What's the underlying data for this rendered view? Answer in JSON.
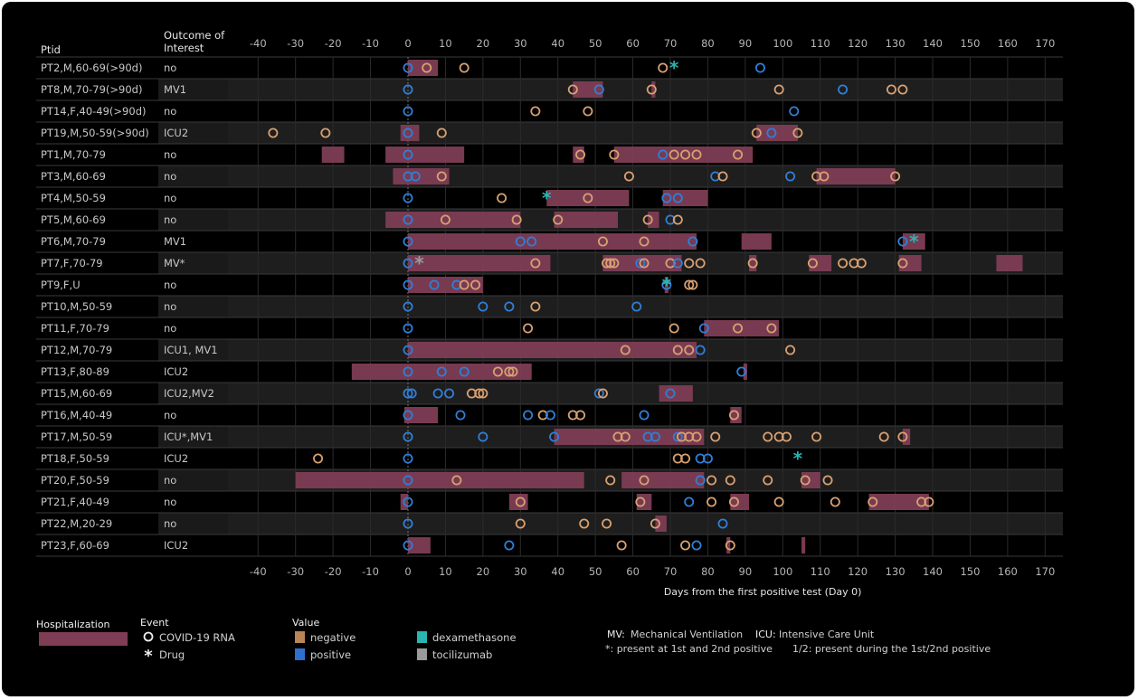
{
  "chart_data": {
    "type": "timeline",
    "xlabel": "Days from the first positive test (Day 0)",
    "xlim": [
      -45,
      175
    ],
    "xticks": [
      -40,
      -30,
      -20,
      -10,
      0,
      10,
      20,
      30,
      40,
      50,
      60,
      70,
      80,
      90,
      100,
      110,
      120,
      130,
      140,
      150,
      160,
      170
    ],
    "columns": {
      "ptid": "Ptid",
      "outcome": "Outcome of Interest"
    },
    "grid": true,
    "colors": {
      "hospitalization": "#7e3d55",
      "negative": "#d9a070",
      "positive": "#2f7fd8",
      "dexamethasone": "#2bb5b0",
      "tocilizumab": "#9a9a9a"
    },
    "rows": [
      {
        "id": "PT2,M,60-69(>90d)",
        "outcome": "no",
        "hosp": [
          [
            0,
            8
          ]
        ],
        "rna": [
          [
            0,
            "pos"
          ],
          [
            5,
            "neg"
          ],
          [
            15,
            "neg"
          ],
          [
            68,
            "neg"
          ],
          [
            94,
            "pos"
          ]
        ],
        "drugs": [
          [
            71,
            "dex"
          ]
        ]
      },
      {
        "id": "PT8,M,70-79(>90d)",
        "outcome": "MV1",
        "hosp": [
          [
            44,
            52
          ],
          [
            65,
            66
          ]
        ],
        "rna": [
          [
            0,
            "pos"
          ],
          [
            44,
            "neg"
          ],
          [
            51,
            "pos"
          ],
          [
            65,
            "neg"
          ],
          [
            99,
            "neg"
          ],
          [
            116,
            "pos"
          ],
          [
            129,
            "neg"
          ],
          [
            132,
            "neg"
          ]
        ],
        "drugs": []
      },
      {
        "id": "PT14,F,40-49(>90d)",
        "outcome": "no",
        "hosp": [],
        "rna": [
          [
            0,
            "pos"
          ],
          [
            34,
            "neg"
          ],
          [
            48,
            "neg"
          ],
          [
            103,
            "pos"
          ]
        ],
        "drugs": []
      },
      {
        "id": "PT19,M,50-59(>90d)",
        "outcome": "ICU2",
        "hosp": [
          [
            -2,
            3
          ],
          [
            93,
            104
          ]
        ],
        "rna": [
          [
            -36,
            "neg"
          ],
          [
            -22,
            "neg"
          ],
          [
            0,
            "pos"
          ],
          [
            9,
            "neg"
          ],
          [
            93,
            "neg"
          ],
          [
            97,
            "pos"
          ],
          [
            104,
            "neg"
          ]
        ],
        "drugs": []
      },
      {
        "id": "PT1,M,70-79",
        "outcome": "no",
        "hosp": [
          [
            -23,
            -17
          ],
          [
            -6,
            15
          ],
          [
            44,
            47
          ],
          [
            55,
            92
          ]
        ],
        "rna": [
          [
            0,
            "pos"
          ],
          [
            46,
            "neg"
          ],
          [
            55,
            "neg"
          ],
          [
            68,
            "pos"
          ],
          [
            71,
            "neg"
          ],
          [
            74,
            "neg"
          ],
          [
            77,
            "neg"
          ],
          [
            88,
            "neg"
          ]
        ],
        "drugs": []
      },
      {
        "id": "PT3,M,60-69",
        "outcome": "no",
        "hosp": [
          [
            -4,
            11
          ],
          [
            109,
            130
          ]
        ],
        "rna": [
          [
            0,
            "pos"
          ],
          [
            2,
            "pos"
          ],
          [
            9,
            "neg"
          ],
          [
            59,
            "neg"
          ],
          [
            82,
            "pos"
          ],
          [
            84,
            "neg"
          ],
          [
            102,
            "pos"
          ],
          [
            109,
            "neg"
          ],
          [
            111,
            "neg"
          ],
          [
            130,
            "neg"
          ]
        ],
        "drugs": []
      },
      {
        "id": "PT4,M,50-59",
        "outcome": "no",
        "hosp": [
          [
            37,
            59
          ],
          [
            68,
            80
          ]
        ],
        "rna": [
          [
            0,
            "pos"
          ],
          [
            25,
            "neg"
          ],
          [
            48,
            "neg"
          ],
          [
            69,
            "pos"
          ],
          [
            72,
            "pos"
          ]
        ],
        "drugs": [
          [
            37,
            "dex"
          ]
        ]
      },
      {
        "id": "PT5,M,60-69",
        "outcome": "no",
        "hosp": [
          [
            -6,
            30
          ],
          [
            39,
            56
          ],
          [
            64,
            67
          ]
        ],
        "rna": [
          [
            0,
            "pos"
          ],
          [
            10,
            "neg"
          ],
          [
            29,
            "neg"
          ],
          [
            40,
            "neg"
          ],
          [
            64,
            "neg"
          ],
          [
            70,
            "pos"
          ],
          [
            72,
            "neg"
          ]
        ],
        "drugs": []
      },
      {
        "id": "PT6,M,70-79",
        "outcome": "MV1",
        "hosp": [
          [
            0,
            77
          ],
          [
            89,
            97
          ],
          [
            132,
            138
          ]
        ],
        "rna": [
          [
            0,
            "pos"
          ],
          [
            30,
            "pos"
          ],
          [
            33,
            "pos"
          ],
          [
            52,
            "neg"
          ],
          [
            63,
            "neg"
          ],
          [
            76,
            "pos"
          ],
          [
            132,
            "pos"
          ]
        ],
        "drugs": [
          [
            135,
            "dex"
          ]
        ]
      },
      {
        "id": "PT7,F,70-79",
        "outcome": "MV*",
        "hosp": [
          [
            0,
            38
          ],
          [
            52,
            73
          ],
          [
            91,
            93
          ],
          [
            107,
            113
          ],
          [
            131,
            137
          ],
          [
            157,
            164
          ]
        ],
        "rna": [
          [
            0,
            "pos"
          ],
          [
            34,
            "neg"
          ],
          [
            53,
            "neg"
          ],
          [
            54,
            "neg"
          ],
          [
            55,
            "neg"
          ],
          [
            62,
            "pos"
          ],
          [
            63,
            "neg"
          ],
          [
            70,
            "neg"
          ],
          [
            72,
            "pos"
          ],
          [
            75,
            "neg"
          ],
          [
            78,
            "neg"
          ],
          [
            92,
            "neg"
          ],
          [
            108,
            "neg"
          ],
          [
            116,
            "neg"
          ],
          [
            119,
            "neg"
          ],
          [
            121,
            "neg"
          ],
          [
            132,
            "neg"
          ]
        ],
        "drugs": [
          [
            3,
            "toci"
          ]
        ]
      },
      {
        "id": "PT9,F,U",
        "outcome": "no",
        "hosp": [
          [
            0,
            20
          ],
          [
            68.5,
            69.5
          ]
        ],
        "rna": [
          [
            0,
            "pos"
          ],
          [
            7,
            "pos"
          ],
          [
            13,
            "pos"
          ],
          [
            15,
            "neg"
          ],
          [
            18,
            "neg"
          ],
          [
            69,
            "pos"
          ],
          [
            75,
            "neg"
          ],
          [
            76,
            "neg"
          ]
        ],
        "drugs": [
          [
            69,
            "dex"
          ]
        ]
      },
      {
        "id": "PT10,M,50-59",
        "outcome": "no",
        "hosp": [],
        "rna": [
          [
            0,
            "pos"
          ],
          [
            20,
            "pos"
          ],
          [
            27,
            "pos"
          ],
          [
            34,
            "neg"
          ],
          [
            61,
            "pos"
          ]
        ],
        "drugs": []
      },
      {
        "id": "PT11,F,70-79",
        "outcome": "no",
        "hosp": [
          [
            79,
            99
          ]
        ],
        "rna": [
          [
            0,
            "pos"
          ],
          [
            32,
            "neg"
          ],
          [
            71,
            "neg"
          ],
          [
            79,
            "pos"
          ],
          [
            88,
            "neg"
          ],
          [
            97,
            "neg"
          ]
        ],
        "drugs": []
      },
      {
        "id": "PT12,M,70-79",
        "outcome": "ICU1, MV1",
        "hosp": [
          [
            0,
            77
          ]
        ],
        "rna": [
          [
            0,
            "pos"
          ],
          [
            58,
            "neg"
          ],
          [
            72,
            "neg"
          ],
          [
            75,
            "neg"
          ],
          [
            78,
            "pos"
          ],
          [
            102,
            "neg"
          ]
        ],
        "drugs": []
      },
      {
        "id": "PT13,F,80-89",
        "outcome": "ICU2",
        "hosp": [
          [
            -15,
            33
          ],
          [
            89.5,
            90.5
          ]
        ],
        "rna": [
          [
            0,
            "pos"
          ],
          [
            9,
            "pos"
          ],
          [
            15,
            "pos"
          ],
          [
            24,
            "neg"
          ],
          [
            27,
            "neg"
          ],
          [
            28,
            "neg"
          ],
          [
            89,
            "pos"
          ]
        ],
        "drugs": []
      },
      {
        "id": "PT15,M,60-69",
        "outcome": "ICU2,MV2",
        "hosp": [
          [
            67,
            76
          ]
        ],
        "rna": [
          [
            0,
            "pos"
          ],
          [
            1,
            "pos"
          ],
          [
            8,
            "pos"
          ],
          [
            11,
            "pos"
          ],
          [
            17,
            "neg"
          ],
          [
            19,
            "neg"
          ],
          [
            20,
            "neg"
          ],
          [
            51,
            "pos"
          ],
          [
            52,
            "neg"
          ],
          [
            70,
            "pos"
          ]
        ],
        "drugs": []
      },
      {
        "id": "PT16,M,40-49",
        "outcome": "no",
        "hosp": [
          [
            -1,
            8
          ],
          [
            86,
            89
          ]
        ],
        "rna": [
          [
            0,
            "pos"
          ],
          [
            14,
            "pos"
          ],
          [
            32,
            "pos"
          ],
          [
            36,
            "neg"
          ],
          [
            38,
            "pos"
          ],
          [
            44,
            "neg"
          ],
          [
            46,
            "neg"
          ],
          [
            63,
            "pos"
          ],
          [
            87,
            "neg"
          ]
        ],
        "drugs": []
      },
      {
        "id": "PT17,M,50-59",
        "outcome": "ICU*,MV1",
        "hosp": [
          [
            39,
            79
          ],
          [
            132,
            134
          ]
        ],
        "rna": [
          [
            0,
            "pos"
          ],
          [
            20,
            "pos"
          ],
          [
            39,
            "pos"
          ],
          [
            56,
            "neg"
          ],
          [
            58,
            "neg"
          ],
          [
            64,
            "pos"
          ],
          [
            66,
            "pos"
          ],
          [
            72,
            "pos"
          ],
          [
            73,
            "neg"
          ],
          [
            75,
            "neg"
          ],
          [
            77,
            "neg"
          ],
          [
            82,
            "neg"
          ],
          [
            96,
            "neg"
          ],
          [
            99,
            "neg"
          ],
          [
            101,
            "neg"
          ],
          [
            109,
            "neg"
          ],
          [
            127,
            "neg"
          ],
          [
            132,
            "neg"
          ]
        ],
        "drugs": []
      },
      {
        "id": "PT18,F,50-59",
        "outcome": "ICU2",
        "hosp": [],
        "rna": [
          [
            -24,
            "neg"
          ],
          [
            0,
            "pos"
          ],
          [
            72,
            "neg"
          ],
          [
            74,
            "neg"
          ],
          [
            78,
            "pos"
          ],
          [
            80,
            "pos"
          ]
        ],
        "drugs": [
          [
            104,
            "dex"
          ]
        ]
      },
      {
        "id": "PT20,F,50-59",
        "outcome": "no",
        "hosp": [
          [
            -30,
            47
          ],
          [
            57,
            79
          ],
          [
            105,
            110
          ]
        ],
        "rna": [
          [
            0,
            "pos"
          ],
          [
            13,
            "neg"
          ],
          [
            54,
            "neg"
          ],
          [
            63,
            "neg"
          ],
          [
            78,
            "pos"
          ],
          [
            81,
            "neg"
          ],
          [
            86,
            "neg"
          ],
          [
            96,
            "neg"
          ],
          [
            106,
            "neg"
          ],
          [
            112,
            "neg"
          ]
        ],
        "drugs": []
      },
      {
        "id": "PT21,F,40-49",
        "outcome": "no",
        "hosp": [
          [
            -2,
            0
          ],
          [
            27,
            32
          ],
          [
            61,
            65
          ],
          [
            86,
            91
          ],
          [
            123,
            139
          ]
        ],
        "rna": [
          [
            0,
            "pos"
          ],
          [
            30,
            "neg"
          ],
          [
            62,
            "neg"
          ],
          [
            75,
            "pos"
          ],
          [
            81,
            "neg"
          ],
          [
            87,
            "neg"
          ],
          [
            99,
            "neg"
          ],
          [
            114,
            "neg"
          ],
          [
            124,
            "neg"
          ],
          [
            137,
            "neg"
          ],
          [
            139,
            "neg"
          ]
        ],
        "drugs": []
      },
      {
        "id": "PT22,M,20-29",
        "outcome": "no",
        "hosp": [
          [
            66,
            69
          ]
        ],
        "rna": [
          [
            0,
            "pos"
          ],
          [
            30,
            "neg"
          ],
          [
            47,
            "neg"
          ],
          [
            53,
            "neg"
          ],
          [
            66,
            "neg"
          ],
          [
            84,
            "pos"
          ]
        ],
        "drugs": []
      },
      {
        "id": "PT23,F,60-69",
        "outcome": "ICU2",
        "hosp": [
          [
            0,
            6
          ],
          [
            85,
            86
          ],
          [
            105,
            106
          ]
        ],
        "rna": [
          [
            0,
            "pos"
          ],
          [
            27,
            "pos"
          ],
          [
            57,
            "neg"
          ],
          [
            74,
            "neg"
          ],
          [
            77,
            "pos"
          ],
          [
            86,
            "neg"
          ]
        ],
        "drugs": []
      }
    ]
  },
  "legend": {
    "hospitalization_title": "Hospitalization",
    "event_title": "Event",
    "event_rna": "COVID-19 RNA",
    "event_drug": "Drug",
    "value_title": "Value",
    "negative": "negative",
    "positive": "positive",
    "dexamethasone": "dexamethasone",
    "tocilizumab": "tocilizumab",
    "note_mv_key": "MV:",
    "note_mv": "Mechanical Ventilation",
    "note_icu_key": "ICU:",
    "note_icu": "Intensive Care Unit",
    "note_star": "*: present at 1st and 2nd positive",
    "note_12": "1/2: present during the 1st/2nd positive"
  }
}
